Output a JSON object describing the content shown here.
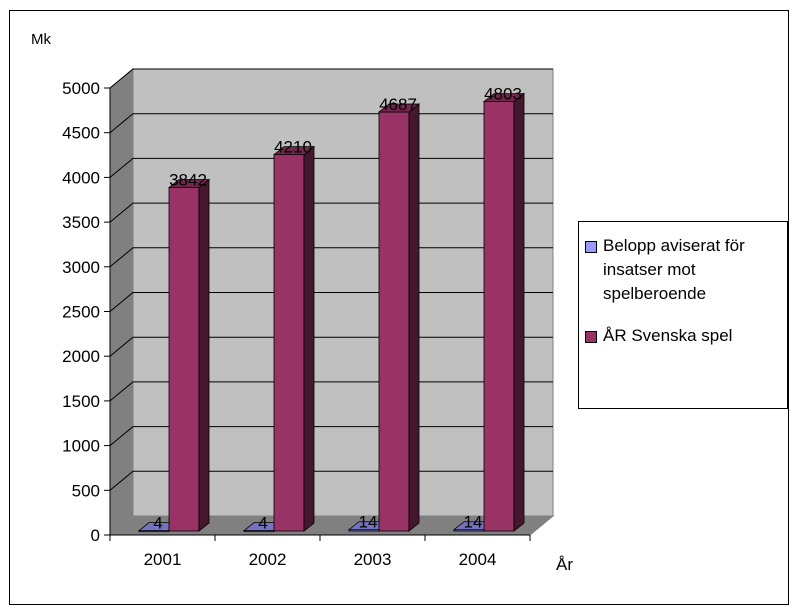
{
  "chart_data": {
    "type": "bar",
    "ylabel": "Mk",
    "xlabel": "År",
    "categories": [
      "2001",
      "2002",
      "2003",
      "2004"
    ],
    "ylim": [
      0,
      5000
    ],
    "yticks": [
      "0",
      "500",
      "1000",
      "1500",
      "2000",
      "2500",
      "3000",
      "3500",
      "4000",
      "4500",
      "5000"
    ],
    "grid": true,
    "legend_position": "right",
    "series": [
      {
        "name": "Belopp aviserat för insatser mot spelberoende",
        "values": [
          4,
          4,
          14,
          14
        ],
        "labels": [
          "4",
          "4",
          "14",
          "14"
        ],
        "color": "#9999ff"
      },
      {
        "name": "ÅR Svenska spel",
        "values": [
          3842,
          4210,
          4687,
          4803
        ],
        "labels": [
          "3842",
          "4210",
          "4687",
          "4803"
        ],
        "color": "#993366"
      }
    ],
    "colors": {
      "plot_wall": "#c0c0c0",
      "floor": "#808080",
      "gridline": "#000000"
    }
  }
}
